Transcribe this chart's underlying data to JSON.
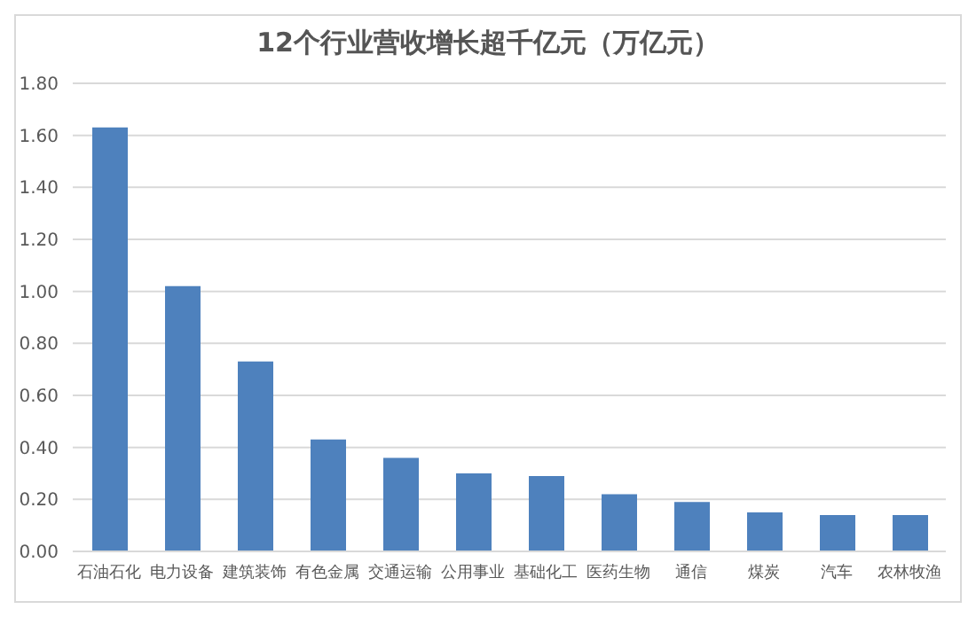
{
  "chart_data": {
    "type": "bar",
    "title": "12个行业营收增长超千亿元（万亿元）",
    "categories": [
      "石油石化",
      "电力设备",
      "建筑装饰",
      "有色金属",
      "交通运输",
      "公用事业",
      "基础化工",
      "医药生物",
      "通信",
      "煤炭",
      "汽车",
      "农林牧渔"
    ],
    "values": [
      1.63,
      1.02,
      0.73,
      0.43,
      0.36,
      0.3,
      0.29,
      0.22,
      0.19,
      0.15,
      0.14,
      0.14
    ],
    "color": "#4e81bd",
    "ylim": [
      0,
      1.8
    ],
    "yticks": [
      {
        "value": 0,
        "label": "0.00"
      },
      {
        "value": 0.2,
        "label": "0.20"
      },
      {
        "value": 0.4,
        "label": "0.40"
      },
      {
        "value": 0.6,
        "label": "0.60"
      },
      {
        "value": 0.8,
        "label": "0.80"
      },
      {
        "value": 1,
        "label": "1.00"
      },
      {
        "value": 1.2,
        "label": "1.20"
      },
      {
        "value": 1.4,
        "label": "1.40"
      },
      {
        "value": 1.6,
        "label": "1.60"
      },
      {
        "value": 1.8,
        "label": "1.80"
      }
    ],
    "grid": "y",
    "legend": false
  }
}
